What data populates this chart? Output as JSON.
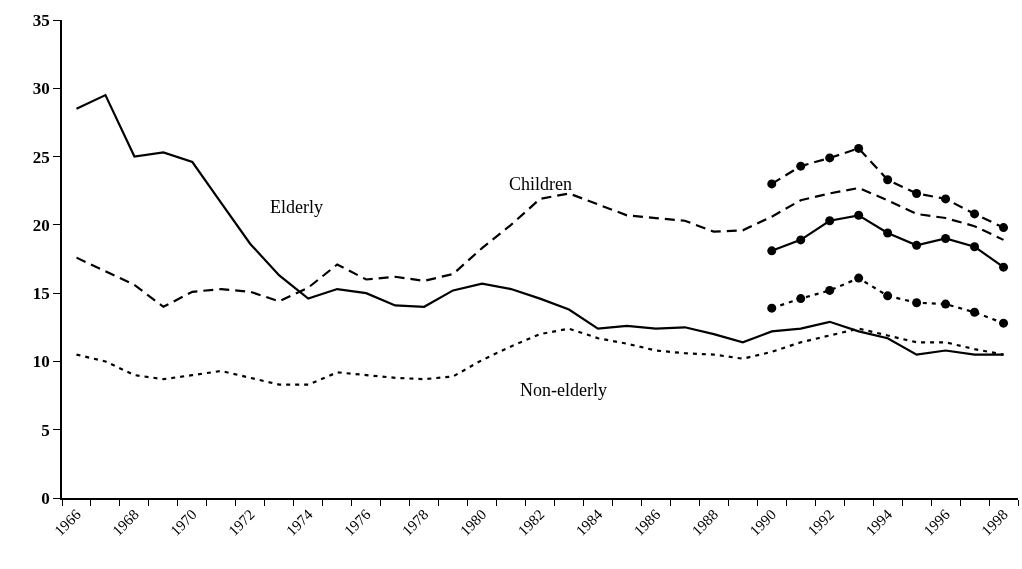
{
  "chart_data": {
    "type": "line",
    "categories": [
      "1966",
      null,
      "1968",
      null,
      "1970",
      null,
      "1972",
      null,
      "1974",
      null,
      "1976",
      null,
      "1978",
      null,
      "1980",
      null,
      "1982",
      null,
      "1984",
      null,
      "1986",
      null,
      "1988",
      null,
      "1990",
      null,
      "1992",
      null,
      "1994",
      null,
      "1996",
      null,
      "1998"
    ],
    "series": [
      {
        "name": "Elderly",
        "color": "#000000",
        "line_style": "solid",
        "marker": "none",
        "values": [
          28.5,
          29.5,
          25.0,
          25.3,
          24.6,
          21.6,
          18.6,
          16.3,
          14.6,
          15.3,
          15.0,
          14.1,
          14.0,
          15.2,
          15.7,
          15.3,
          14.6,
          13.8,
          12.4,
          12.6,
          12.4,
          12.5,
          12.0,
          11.4,
          12.2,
          12.4,
          12.9,
          12.2,
          11.7,
          10.5,
          10.8,
          10.5,
          10.5
        ]
      },
      {
        "name": "Children",
        "color": "#000000",
        "line_style": "dashed",
        "marker": "none",
        "values": [
          17.6,
          16.6,
          15.6,
          14.0,
          15.1,
          15.3,
          15.1,
          14.4,
          15.4,
          17.1,
          16.0,
          16.2,
          15.9,
          16.4,
          18.3,
          20.0,
          21.9,
          22.3,
          21.5,
          20.7,
          20.5,
          20.3,
          19.5,
          19.6,
          20.6,
          21.8,
          22.3,
          22.7,
          21.8,
          20.8,
          20.5,
          19.9,
          18.9
        ]
      },
      {
        "name": "Non-elderly",
        "color": "#000000",
        "line_style": "dotted",
        "marker": "none",
        "values": [
          10.5,
          10.0,
          9.0,
          8.7,
          9.0,
          9.3,
          8.8,
          8.3,
          8.3,
          9.2,
          9.0,
          8.8,
          8.7,
          8.9,
          10.1,
          11.1,
          12.0,
          12.4,
          11.7,
          11.3,
          10.8,
          10.6,
          10.5,
          10.2,
          10.7,
          11.4,
          11.9,
          12.4,
          11.9,
          11.4,
          11.4,
          10.9,
          10.5
        ]
      },
      {
        "color": "#000000",
        "line_style": "dashed",
        "marker": "circle",
        "values": [
          null,
          null,
          null,
          null,
          null,
          null,
          null,
          null,
          null,
          null,
          null,
          null,
          null,
          null,
          null,
          null,
          null,
          null,
          null,
          null,
          null,
          null,
          null,
          null,
          23.0,
          24.3,
          24.9,
          25.6,
          23.3,
          22.3,
          21.9,
          20.8,
          19.8
        ]
      },
      {
        "color": "#000000",
        "line_style": "solid",
        "marker": "circle",
        "values": [
          null,
          null,
          null,
          null,
          null,
          null,
          null,
          null,
          null,
          null,
          null,
          null,
          null,
          null,
          null,
          null,
          null,
          null,
          null,
          null,
          null,
          null,
          null,
          null,
          18.1,
          18.9,
          20.3,
          20.7,
          19.4,
          18.5,
          19.0,
          18.4,
          16.9
        ]
      },
      {
        "color": "#000000",
        "line_style": "dotted",
        "marker": "circle",
        "values": [
          null,
          null,
          null,
          null,
          null,
          null,
          null,
          null,
          null,
          null,
          null,
          null,
          null,
          null,
          null,
          null,
          null,
          null,
          null,
          null,
          null,
          null,
          null,
          null,
          13.9,
          14.6,
          15.2,
          16.1,
          14.8,
          14.3,
          14.2,
          13.6,
          12.8
        ]
      }
    ],
    "ylim": [
      0,
      35
    ],
    "yticks": [
      0,
      5,
      10,
      15,
      20,
      25,
      30,
      35
    ],
    "grid": false,
    "legend": false
  }
}
